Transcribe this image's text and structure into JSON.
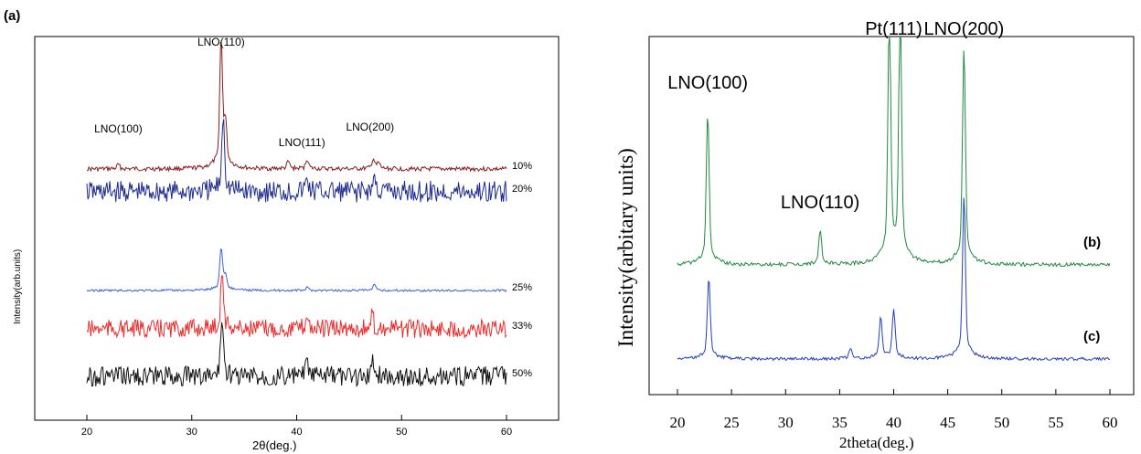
{
  "chart_data": [
    {
      "type": "line",
      "panel_label": "(a)",
      "xlabel": "2θ(deg.)",
      "ylabel": "Intensity(arb.units)",
      "xlim": [
        15,
        65
      ],
      "x_ticks": [
        "20",
        "30",
        "40",
        "50",
        "60"
      ],
      "x_tick_values": [
        20,
        30,
        40,
        50,
        60
      ],
      "annotations": [
        {
          "text": "LNO(100)",
          "x": 23
        },
        {
          "text": "LNO(110)",
          "x": 32.8
        },
        {
          "text": "LNO(111)",
          "x": 40.5
        },
        {
          "text": "LNO(200)",
          "x": 47
        }
      ],
      "series": [
        {
          "name": "10%",
          "color": "#8b1a1a",
          "baseline": 0.86,
          "noise": 0.012,
          "peaks": [
            [
              23,
              0.03
            ],
            [
              32.8,
              0.9
            ],
            [
              33.2,
              0.3
            ],
            [
              39.2,
              0.05
            ],
            [
              41,
              0.07
            ],
            [
              47.3,
              0.07
            ],
            [
              47.8,
              0.04
            ]
          ]
        },
        {
          "name": "20%",
          "color": "#1f2b8f",
          "baseline": 0.7,
          "noise": 0.06,
          "peaks": [
            [
              33,
              0.55
            ],
            [
              41,
              0.09
            ],
            [
              47.4,
              0.1
            ]
          ]
        },
        {
          "name": "25%",
          "color": "#3a62d6",
          "baseline": 0.36,
          "noise": 0.006,
          "peaks": [
            [
              32.8,
              0.3
            ],
            [
              33.2,
              0.1
            ],
            [
              41,
              0.02
            ],
            [
              47.4,
              0.04
            ]
          ]
        },
        {
          "name": "33%",
          "color": "#ef2b2b",
          "baseline": 0.26,
          "noise": 0.05,
          "peaks": [
            [
              32.9,
              0.4
            ],
            [
              41,
              0.1
            ],
            [
              47.2,
              0.09
            ]
          ]
        },
        {
          "name": "50%",
          "color": "#111111",
          "baseline": 0.1,
          "noise": 0.055,
          "peaks": [
            [
              32.9,
              0.42
            ],
            [
              41,
              0.1
            ],
            [
              47.3,
              0.11
            ]
          ]
        }
      ]
    },
    {
      "type": "line",
      "xlabel": "2theta(deg.)",
      "ylabel": "Intensity(arbitary units)",
      "xlim": [
        18,
        62
      ],
      "x_ticks": [
        "20",
        "25",
        "30",
        "35",
        "40",
        "45",
        "50",
        "55",
        "60"
      ],
      "x_tick_values": [
        20,
        25,
        30,
        35,
        40,
        45,
        50,
        55,
        60
      ],
      "annotations": [
        {
          "text": "LNO(100)",
          "x": 22.8
        },
        {
          "text": "LNO(110)",
          "x": 33.2
        },
        {
          "text": "Pt(111)",
          "x": 40
        },
        {
          "text": "LNO(200)",
          "x": 46.5
        }
      ],
      "series": [
        {
          "name": "(b)",
          "color": "#1e8b3c",
          "baseline": 0.37,
          "noise": 0.01,
          "peaks": [
            [
              22.8,
              0.55
            ],
            [
              33.2,
              0.12
            ],
            [
              39.6,
              0.9
            ],
            [
              40.6,
              0.9
            ],
            [
              46.5,
              0.8
            ]
          ]
        },
        {
          "name": "(c)",
          "color": "#2440b8",
          "baseline": 0.1,
          "noise": 0.008,
          "peaks": [
            [
              22.9,
              0.3
            ],
            [
              36,
              0.04
            ],
            [
              38.8,
              0.15
            ],
            [
              40,
              0.18
            ],
            [
              46.5,
              0.6
            ]
          ]
        }
      ]
    }
  ]
}
